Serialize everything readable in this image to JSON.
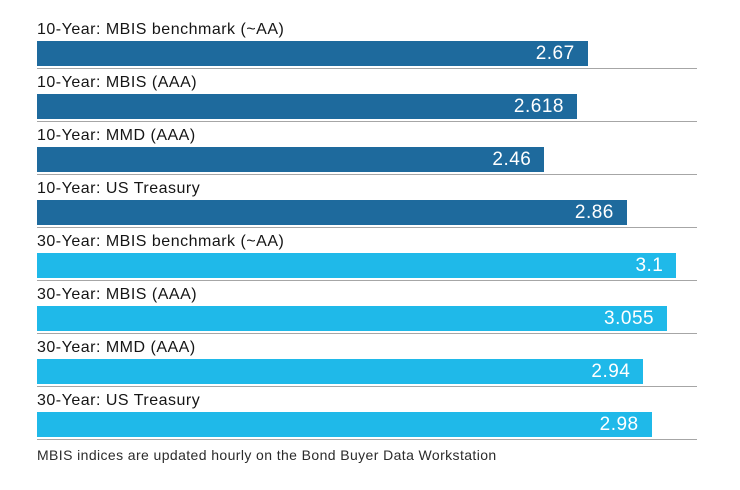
{
  "chart_data": {
    "type": "bar",
    "orientation": "horizontal",
    "title": "",
    "xlabel": "",
    "ylabel": "",
    "xlim": [
      0,
      3.2
    ],
    "grid": false,
    "legend": "none",
    "categories": [
      "10-Year: MBIS benchmark (~AA)",
      "10-Year: MBIS (AAA)",
      "10-Year: MMD (AAA)",
      "10-Year: US Treasury",
      "30-Year: MBIS benchmark (~AA)",
      "30-Year: MBIS (AAA)",
      "30-Year: MMD (AAA)",
      "30-Year: US Treasury"
    ],
    "values": [
      2.67,
      2.618,
      2.46,
      2.86,
      3.1,
      3.055,
      2.94,
      2.98
    ],
    "value_labels": [
      "2.67",
      "2.618",
      "2.46",
      "2.86",
      "3.1",
      "3.055",
      "2.94",
      "2.98"
    ],
    "bar_colors": [
      "#1e6a9d",
      "#1e6a9d",
      "#1e6a9d",
      "#1e6a9d",
      "#1fb9e9",
      "#1fb9e9",
      "#1fb9e9",
      "#1fb9e9"
    ],
    "footnote": "MBIS indices are updated hourly on the Bond Buyer Data Workstation"
  },
  "colors": {
    "dark_blue_10yr": "#1e6a9d",
    "cyan_30yr": "#1fb9e9",
    "separator": "#a6a6a6",
    "category_text": "#151515",
    "value_text": "#ffffff",
    "footnote_text": "#2b2b2b",
    "background": "#ffffff"
  }
}
